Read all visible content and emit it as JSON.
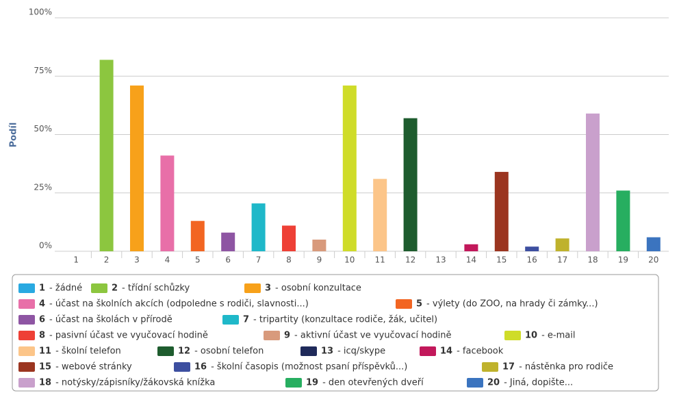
{
  "chart_data": {
    "type": "bar",
    "y_label": "Podíl",
    "categories": [
      "1",
      "2",
      "3",
      "4",
      "5",
      "6",
      "7",
      "8",
      "9",
      "10",
      "11",
      "12",
      "13",
      "14",
      "15",
      "16",
      "17",
      "18",
      "19",
      "20"
    ],
    "labels": [
      "- žádné",
      "- třídní schůzky",
      "- osobní konzultace",
      "- účast na školních akcích (odpoledne s rodiči, slavnosti...)",
      "- výlety (do ZOO, na hrady či zámky...)",
      "- účast na školách v přírodě",
      "- tripartity (konzultace rodiče, žák, učitel)",
      "- pasivní účast ve vyučovací hodině",
      "- aktivní účast ve vyučovací hodině",
      "- e-mail",
      "- školní telefon",
      "- osobní telefon",
      "- icq/skype",
      "- facebook",
      "- webové stránky",
      "- školní časopis (možnost psaní příspěvků...)",
      "- nástěnka pro rodiče",
      "- notýsky/zápisníky/žákovská knížka",
      "- den otevřených dveří",
      "- Jiná, dopište..."
    ],
    "values": [
      0,
      82,
      71,
      41,
      13,
      8,
      20.5,
      11,
      5,
      71,
      31,
      57,
      0,
      3,
      34,
      2,
      5.5,
      59,
      26,
      6
    ],
    "colors": [
      "#29a9e1",
      "#8cc63f",
      "#f7a11a",
      "#e86fa8",
      "#f26522",
      "#8e55a3",
      "#1fb8c9",
      "#ee4036",
      "#d89a7c",
      "#cfdc29",
      "#fcc589",
      "#1e5c2e",
      "#1f2a5a",
      "#c2185b",
      "#9b3520",
      "#3d4fa0",
      "#bfb22c",
      "#c9a0cc",
      "#27ae60",
      "#3b74bf"
    ],
    "ylim": [
      0,
      100
    ],
    "yticks": [
      {
        "value": 0,
        "label": "0%"
      },
      {
        "value": 25,
        "label": "25%"
      },
      {
        "value": 50,
        "label": "50%"
      },
      {
        "value": 75,
        "label": "75%"
      },
      {
        "value": 100,
        "label": "100%"
      }
    ],
    "grid": true
  }
}
